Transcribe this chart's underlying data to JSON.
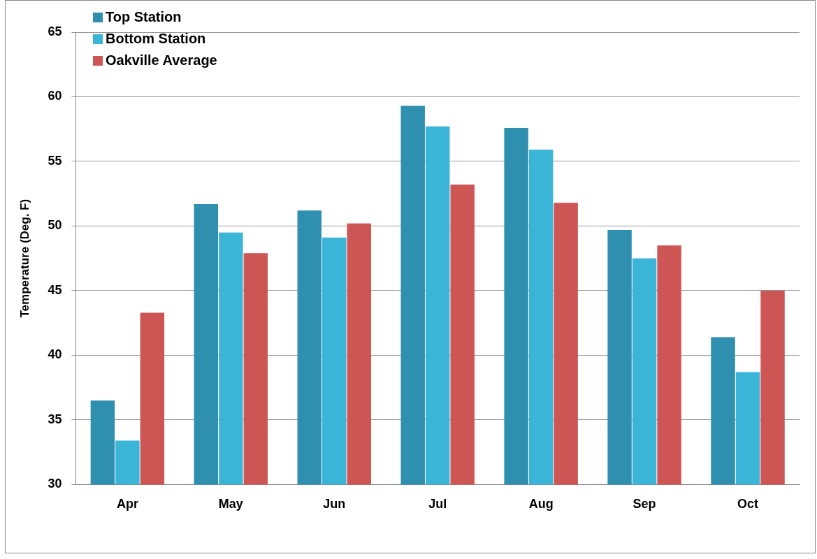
{
  "chart_data": {
    "type": "bar",
    "ylabel": "Temperature (Deg. F)",
    "categories": [
      "Apr",
      "May",
      "Jun",
      "Jul",
      "Aug",
      "Sep",
      "Oct"
    ],
    "series": [
      {
        "name": "Top Station",
        "color": "#2e8fae",
        "values": [
          36.5,
          51.7,
          51.2,
          59.3,
          57.6,
          49.7,
          41.4
        ]
      },
      {
        "name": "Bottom Station",
        "color": "#3ab5d8",
        "values": [
          33.4,
          49.5,
          49.1,
          57.7,
          55.9,
          47.5,
          38.7
        ]
      },
      {
        "name": "Oakville Average",
        "color": "#cd5654",
        "values": [
          43.3,
          47.9,
          50.2,
          53.2,
          51.8,
          48.5,
          45.0
        ]
      }
    ],
    "ylim": [
      30,
      65
    ],
    "yticks": [
      30,
      35,
      40,
      45,
      50,
      55,
      60,
      65
    ],
    "grid": "y",
    "legend": "top left"
  }
}
